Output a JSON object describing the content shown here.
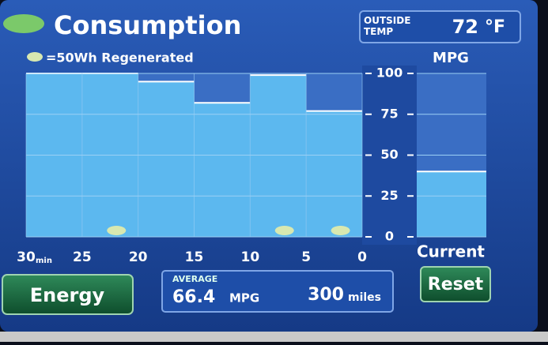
{
  "header": {
    "title": "Consumption",
    "outside_label": "OUTSIDE TEMP",
    "temperature": 72,
    "temperature_unit": "°F"
  },
  "chart_data": {
    "type": "histogram",
    "legend": "=50Wh Regenerated",
    "y_label": "MPG",
    "bins": [
      30,
      25,
      20,
      15,
      10,
      5,
      0
    ],
    "x_unit": "min",
    "xlim": [
      30,
      0
    ],
    "values": [
      100,
      100,
      95,
      82,
      99,
      77
    ],
    "regenerated": [
      0,
      1,
      0,
      0,
      1,
      1
    ],
    "color": "#5cb8ef",
    "empty_color": "#3a6ec4",
    "ylim": [
      0,
      100
    ],
    "yticks": [
      0,
      25,
      50,
      75,
      100
    ],
    "grid": true,
    "current": {
      "label": "Current",
      "value": 40
    }
  },
  "footer": {
    "energy_button": "Energy",
    "average_label": "AVERAGE",
    "average_value": "66.4",
    "average_unit": "MPG",
    "distance_value": 300,
    "distance_unit": "miles",
    "reset_button": "Reset"
  }
}
